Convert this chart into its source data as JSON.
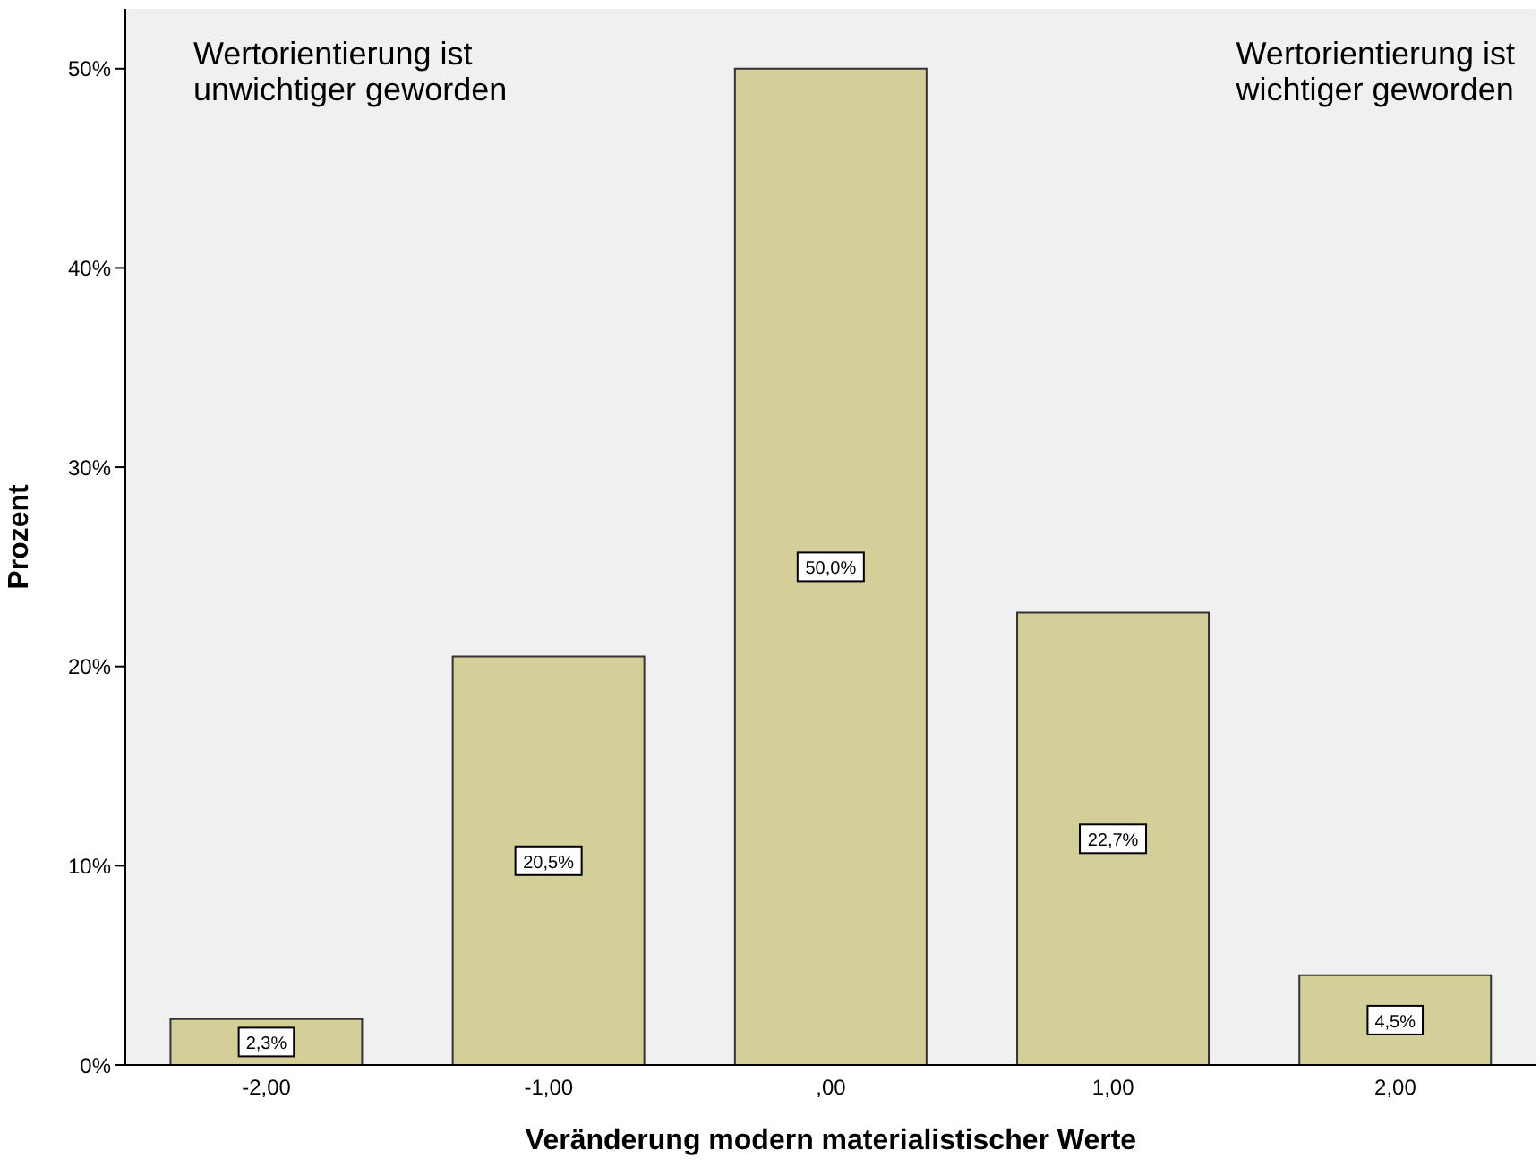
{
  "chart_data": {
    "type": "bar",
    "xlabel": "Veränderung modern materialistischer Werte",
    "ylabel": "Prozent",
    "categories": [
      "-2,00",
      "-1,00",
      ",00",
      "1,00",
      "2,00"
    ],
    "values": [
      2.3,
      20.5,
      50.0,
      22.7,
      4.5
    ],
    "value_labels": [
      "2,3%",
      "20,5%",
      "50,0%",
      "22,7%",
      "4,5%"
    ],
    "color": "#d4cf98",
    "ylim": [
      0,
      53
    ],
    "yticks": [
      {
        "value": 0,
        "label": "0%"
      },
      {
        "value": 10,
        "label": "10%"
      },
      {
        "value": 20,
        "label": "20%"
      },
      {
        "value": 30,
        "label": "30%"
      },
      {
        "value": 40,
        "label": "40%"
      },
      {
        "value": 50,
        "label": "50%"
      }
    ],
    "grid": false,
    "annotations": [
      "Wertorientierung ist\nunwichtiger geworden",
      "Wertorientierung ist\nwichtiger geworden"
    ]
  }
}
